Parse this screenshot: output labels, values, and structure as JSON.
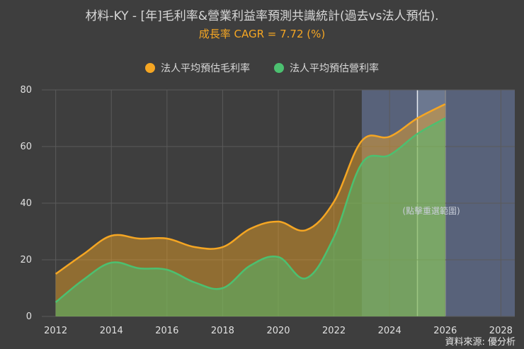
{
  "title": "材料-KY - [年]毛利率&營業利益率預測共識統計(過去vs法人預估).",
  "subtitle": "成長率 CAGR = 7.72 (%)",
  "source": "資料來源: 優分析",
  "overlay_label": "(點擊重選範圍)",
  "colors": {
    "background": "#3e3e3e",
    "grid": "#5a5a5a",
    "subtitle": "#f5a623",
    "series1": "#f5a623",
    "series2": "#4cc070",
    "forecast_band": "#58627a",
    "selection": "#7d8aa2"
  },
  "chart_data": {
    "type": "area",
    "x": [
      2012,
      2013,
      2014,
      2015,
      2016,
      2017,
      2018,
      2019,
      2020,
      2021,
      2022,
      2023,
      2024,
      2025,
      2026
    ],
    "series": [
      {
        "name": "法人平均預估毛利率",
        "values": [
          15,
          22,
          28.5,
          27.5,
          27.5,
          24.5,
          24.5,
          31,
          33.5,
          30.5,
          40.5,
          62,
          63.5,
          70,
          75
        ]
      },
      {
        "name": "法人平均預估營利率",
        "values": [
          5,
          13,
          19,
          17,
          16.5,
          12,
          10,
          18,
          21,
          13.5,
          28,
          54,
          57,
          64.5,
          70
        ]
      }
    ],
    "xlim": [
      2011.5,
      2028.5
    ],
    "ylim": [
      0,
      80
    ],
    "x_ticks": [
      2012,
      2014,
      2016,
      2018,
      2020,
      2022,
      2024,
      2026,
      2028
    ],
    "y_ticks": [
      0,
      20,
      40,
      60,
      80
    ],
    "forecast_range": [
      2023,
      2028.5
    ],
    "selected_range": [
      2025,
      2026
    ],
    "grid": true,
    "legend_position": "top-center"
  }
}
